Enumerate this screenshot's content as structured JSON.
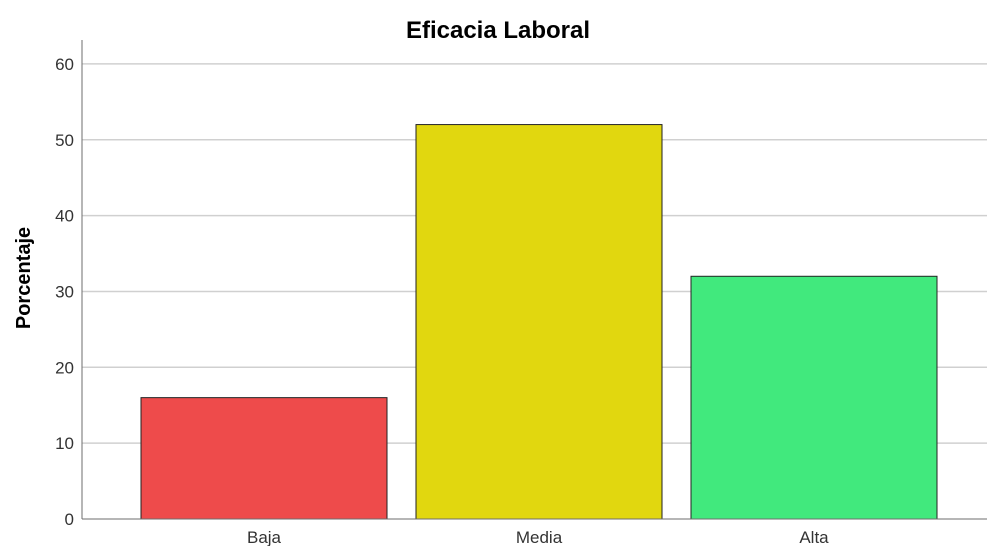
{
  "chart_data": {
    "type": "bar",
    "title": "Eficacia Laboral",
    "xlabel": "",
    "ylabel": "Porcentaje",
    "categories": [
      "Baja",
      "Media",
      "Alta"
    ],
    "values": [
      16,
      52,
      32
    ],
    "colors": [
      "#ee4b4b",
      "#e1d70f",
      "#41e97d"
    ],
    "ylim": [
      0,
      63
    ],
    "yticks": [
      0,
      10,
      20,
      30,
      40,
      50,
      60
    ],
    "ytick_labels": [
      "0",
      "10",
      "20",
      "30",
      "40",
      "50",
      "60"
    ],
    "grid": true,
    "legend": "none"
  }
}
